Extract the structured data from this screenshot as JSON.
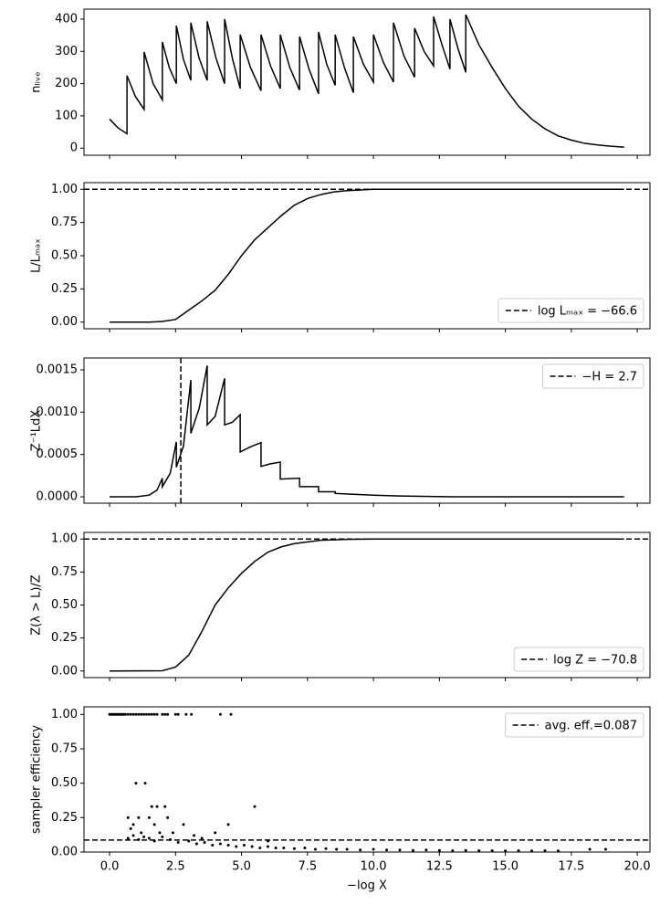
{
  "chart_data": [
    {
      "type": "line",
      "ylabel": "nₗᵢᵥₑ",
      "xlim": [
        -0.97,
        20.48
      ],
      "xticks": [
        0,
        2.5,
        5,
        7.5,
        10,
        12.5,
        15,
        17.5,
        20
      ],
      "show_xtick_labels": false,
      "ylim": [
        -22,
        431
      ],
      "yticks": [
        0,
        100,
        200,
        300,
        400
      ],
      "x": [
        0,
        0.33,
        0.66,
        0.66,
        0.98,
        1.31,
        1.31,
        1.65,
        2.0,
        2.0,
        2.26,
        2.53,
        2.53,
        2.8,
        3.08,
        3.08,
        3.39,
        3.7,
        3.7,
        4.03,
        4.36,
        4.36,
        4.65,
        4.95,
        4.95,
        5.34,
        5.74,
        5.74,
        6.1,
        6.47,
        6.47,
        6.83,
        7.2,
        7.2,
        7.56,
        7.92,
        7.92,
        8.23,
        8.55,
        8.55,
        8.9,
        9.24,
        9.24,
        9.62,
        10.0,
        10.0,
        10.38,
        10.76,
        10.76,
        11.16,
        11.56,
        11.56,
        11.92,
        12.28,
        12.28,
        12.6,
        12.9,
        12.9,
        13.2,
        13.5,
        13.5,
        14.0,
        14.5,
        15.0,
        15.5,
        16.0,
        16.5,
        17.0,
        17.5,
        18.0,
        18.5,
        19.0,
        19.5
      ],
      "series": [
        {
          "color": "#000000",
          "values": [
            90,
            62,
            45,
            225,
            160,
            120,
            298,
            200,
            150,
            329,
            250,
            200,
            380,
            275,
            210,
            389,
            280,
            210,
            393,
            280,
            200,
            400,
            280,
            185,
            352,
            250,
            178,
            352,
            255,
            185,
            352,
            250,
            180,
            346,
            245,
            168,
            360,
            260,
            195,
            352,
            250,
            172,
            346,
            260,
            205,
            352,
            265,
            205,
            389,
            285,
            220,
            372,
            300,
            255,
            408,
            320,
            245,
            400,
            310,
            235,
            414,
            320,
            250,
            185,
            130,
            90,
            60,
            38,
            25,
            15,
            10,
            6,
            3
          ]
        }
      ]
    },
    {
      "type": "line",
      "ylabel": "L/Lₘₐₓ",
      "xlim": [
        -0.97,
        20.48
      ],
      "xticks": [
        0,
        2.5,
        5,
        7.5,
        10,
        12.5,
        15,
        17.5,
        20
      ],
      "show_xtick_labels": false,
      "ylim": [
        -0.05,
        1.05
      ],
      "yticks": [
        {
          "value": 0,
          "label": "0.00"
        },
        {
          "value": 0.25,
          "label": "0.25"
        },
        {
          "value": 0.5,
          "label": "0.50"
        },
        {
          "value": 0.75,
          "label": "0.75"
        },
        {
          "value": 1,
          "label": "1.00"
        }
      ],
      "x": [
        0,
        1.5,
        2.0,
        2.5,
        3.0,
        3.5,
        4.0,
        4.5,
        5.0,
        5.5,
        6.0,
        6.5,
        7.0,
        7.5,
        8.0,
        8.5,
        9.0,
        10.0,
        19.5
      ],
      "series": [
        {
          "color": "#000000",
          "values": [
            0,
            0,
            0.005,
            0.02,
            0.09,
            0.16,
            0.24,
            0.36,
            0.5,
            0.62,
            0.71,
            0.8,
            0.88,
            0.93,
            0.96,
            0.98,
            0.99,
            1.0,
            1.0
          ]
        }
      ],
      "reference": {
        "name": "log Lₘₐₓ = −66.6",
        "orientation": "horizontal",
        "value": 1.0
      },
      "legend_loc": "lower right"
    },
    {
      "type": "line",
      "ylabel": "Z⁻¹LdX",
      "xlim": [
        -0.97,
        20.48
      ],
      "xticks": [
        0,
        2.5,
        5,
        7.5,
        10,
        12.5,
        15,
        17.5,
        20
      ],
      "show_xtick_labels": false,
      "ylim": [
        -7.5e-05,
        0.00164
      ],
      "yticks": [
        {
          "value": 0,
          "label": "0.0000"
        },
        {
          "value": 0.0005,
          "label": "0.0005"
        },
        {
          "value": 0.001,
          "label": "0.0010"
        },
        {
          "value": 0.0015,
          "label": "0.0015"
        }
      ],
      "x": [
        0,
        1.0,
        1.5,
        1.8,
        2.0,
        2.0,
        2.3,
        2.53,
        2.53,
        2.8,
        3.08,
        3.08,
        3.4,
        3.7,
        3.7,
        4.0,
        4.36,
        4.36,
        4.65,
        4.95,
        4.95,
        5.34,
        5.74,
        5.74,
        6.1,
        6.47,
        6.47,
        7.2,
        7.2,
        7.92,
        7.92,
        8.55,
        8.55,
        9.24,
        10.0,
        11.0,
        13.0,
        19.5
      ],
      "series": [
        {
          "color": "#000000",
          "values": [
            0,
            0,
            2e-05,
            8e-05,
            0.00022,
            0.00012,
            0.00028,
            0.00065,
            0.00035,
            0.0006,
            0.00138,
            0.00075,
            0.00105,
            0.00155,
            0.00085,
            0.00095,
            0.0014,
            0.00085,
            0.00088,
            0.00097,
            0.00053,
            0.00059,
            0.00064,
            0.00036,
            0.00039,
            0.00041,
            0.00021,
            0.00022,
            0.00012,
            0.00012,
            6e-05,
            6e-05,
            4e-05,
            3e-05,
            2e-05,
            1e-05,
            0,
            0
          ]
        }
      ],
      "reference": {
        "name": "−H = 2.7",
        "orientation": "vertical",
        "value": 2.7
      },
      "legend_loc": "upper right"
    },
    {
      "type": "line",
      "ylabel": "Z(λ > L)/Z",
      "xlim": [
        -0.97,
        20.48
      ],
      "xticks": [
        0,
        2.5,
        5,
        7.5,
        10,
        12.5,
        15,
        17.5,
        20
      ],
      "show_xtick_labels": false,
      "ylim": [
        -0.05,
        1.05
      ],
      "yticks": [
        {
          "value": 0,
          "label": "0.00"
        },
        {
          "value": 0.25,
          "label": "0.25"
        },
        {
          "value": 0.5,
          "label": "0.50"
        },
        {
          "value": 0.75,
          "label": "0.75"
        },
        {
          "value": 1,
          "label": "1.00"
        }
      ],
      "x": [
        0,
        2.0,
        2.5,
        3.0,
        3.5,
        4.0,
        4.5,
        5.0,
        5.5,
        6.0,
        6.5,
        7.0,
        8.0,
        9.0,
        10.0,
        19.5
      ],
      "series": [
        {
          "color": "#000000",
          "values": [
            0,
            0.002,
            0.03,
            0.12,
            0.3,
            0.5,
            0.63,
            0.74,
            0.83,
            0.9,
            0.94,
            0.965,
            0.99,
            0.997,
            1.0,
            1.0
          ]
        }
      ],
      "reference": {
        "name": "log Z = −70.8",
        "orientation": "horizontal",
        "value": 1.0
      },
      "legend_loc": "lower right"
    },
    {
      "type": "scatter",
      "ylabel": "sampler efficiency",
      "xlabel": "−log X",
      "xlim": [
        -0.97,
        20.48
      ],
      "xticks": [
        {
          "value": 0,
          "label": "0.0"
        },
        {
          "value": 2.5,
          "label": "2.5"
        },
        {
          "value": 5,
          "label": "5.0"
        },
        {
          "value": 7.5,
          "label": "7.5"
        },
        {
          "value": 10,
          "label": "10.0"
        },
        {
          "value": 12.5,
          "label": "12.5"
        },
        {
          "value": 15,
          "label": "15.0"
        },
        {
          "value": 17.5,
          "label": "17.5"
        },
        {
          "value": 20,
          "label": "20.0"
        }
      ],
      "show_xtick_labels": true,
      "ylim": [
        0,
        1.055
      ],
      "yticks": [
        {
          "value": 0,
          "label": "0.00"
        },
        {
          "value": 0.25,
          "label": "0.25"
        },
        {
          "value": 0.5,
          "label": "0.50"
        },
        {
          "value": 0.75,
          "label": "0.75"
        },
        {
          "value": 1,
          "label": "1.00"
        }
      ],
      "color": "#000000",
      "x": [
        0.0,
        0.05,
        0.1,
        0.15,
        0.2,
        0.25,
        0.3,
        0.35,
        0.4,
        0.45,
        0.5,
        0.55,
        0.6,
        0.7,
        0.8,
        0.9,
        1.0,
        1.1,
        1.2,
        1.3,
        1.4,
        1.5,
        1.6,
        1.7,
        1.8,
        2.0,
        2.1,
        2.2,
        2.5,
        2.6,
        2.9,
        3.1,
        4.2,
        4.6,
        0.7,
        0.8,
        0.9,
        1.0,
        1.1,
        1.2,
        1.35,
        1.5,
        1.6,
        1.7,
        1.8,
        1.9,
        2.1,
        2.2,
        2.4,
        2.8,
        3.2,
        3.5,
        4.0,
        4.5,
        5.5,
        6.0,
        0.7,
        0.9,
        1.1,
        1.3,
        1.5,
        1.7,
        2.0,
        2.3,
        2.6,
        3.0,
        3.3,
        3.6,
        3.9,
        4.2,
        4.5,
        4.8,
        5.1,
        5.4,
        5.7,
        6.0,
        6.3,
        6.6,
        7.0,
        7.4,
        7.8,
        8.2,
        8.6,
        9.0,
        9.5,
        10.0,
        10.5,
        11.0,
        11.5,
        12.0,
        12.5,
        13.0,
        13.5,
        14.0,
        14.5,
        15.0,
        15.5,
        16.0,
        16.5,
        17.0,
        18.2,
        18.8
      ],
      "values": [
        1,
        1,
        1,
        1,
        1,
        1,
        1,
        1,
        1,
        1,
        1,
        1,
        1,
        1,
        1,
        1,
        1,
        1,
        1,
        1,
        1,
        1,
        1,
        1,
        1,
        1,
        1,
        1,
        1,
        1,
        1,
        1,
        1,
        1,
        0.25,
        0.17,
        0.2,
        0.5,
        0.25,
        0.14,
        0.5,
        0.25,
        0.33,
        0.2,
        0.33,
        0.14,
        0.33,
        0.25,
        0.14,
        0.2,
        0.12,
        0.1,
        0.14,
        0.2,
        0.33,
        0.08,
        0.1,
        0.12,
        0.09,
        0.11,
        0.1,
        0.08,
        0.11,
        0.09,
        0.07,
        0.08,
        0.06,
        0.07,
        0.05,
        0.06,
        0.05,
        0.04,
        0.05,
        0.04,
        0.03,
        0.04,
        0.03,
        0.03,
        0.025,
        0.03,
        0.02,
        0.025,
        0.02,
        0.02,
        0.015,
        0.02,
        0.015,
        0.015,
        0.012,
        0.015,
        0.012,
        0.01,
        0.012,
        0.01,
        0.01,
        0.008,
        0.01,
        0.008,
        0.01,
        0.008,
        0.02,
        0.02
      ],
      "reference": {
        "name": "avg. eff.=0.087",
        "orientation": "horizontal",
        "value": 0.087
      },
      "legend_loc": "upper right"
    }
  ]
}
